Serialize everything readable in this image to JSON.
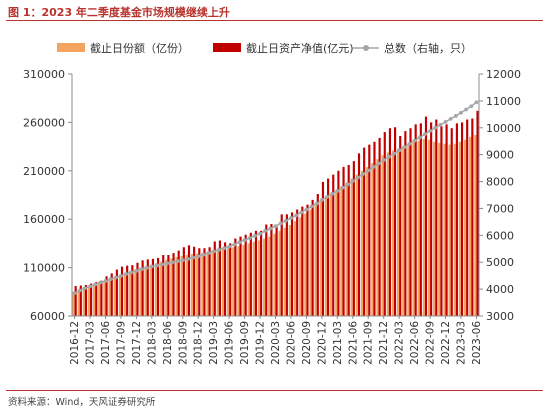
{
  "title": "图 1：2023 年二季度基金市场规模继续上升",
  "source": "资料来源：Wind，天风证券研究所",
  "chart_data": {
    "type": "bar",
    "legend_position": "top",
    "grid": false,
    "categories": [
      "2016-12",
      "2017-01",
      "2017-02",
      "2017-03",
      "2017-04",
      "2017-05",
      "2017-06",
      "2017-07",
      "2017-08",
      "2017-09",
      "2017-10",
      "2017-11",
      "2017-12",
      "2018-01",
      "2018-02",
      "2018-03",
      "2018-04",
      "2018-05",
      "2018-06",
      "2018-07",
      "2018-08",
      "2018-09",
      "2018-10",
      "2018-11",
      "2018-12",
      "2019-01",
      "2019-02",
      "2019-03",
      "2019-04",
      "2019-05",
      "2019-06",
      "2019-07",
      "2019-08",
      "2019-09",
      "2019-10",
      "2019-11",
      "2019-12",
      "2020-01",
      "2020-02",
      "2020-03",
      "2020-04",
      "2020-05",
      "2020-06",
      "2020-07",
      "2020-08",
      "2020-09",
      "2020-10",
      "2020-11",
      "2020-12",
      "2021-01",
      "2021-02",
      "2021-03",
      "2021-04",
      "2021-05",
      "2021-06",
      "2021-07",
      "2021-08",
      "2021-09",
      "2021-10",
      "2021-11",
      "2021-12",
      "2022-01",
      "2022-02",
      "2022-03",
      "2022-04",
      "2022-05",
      "2022-06",
      "2022-07",
      "2022-08",
      "2022-09",
      "2022-10",
      "2022-11",
      "2022-12",
      "2023-01",
      "2023-02",
      "2023-03",
      "2023-04",
      "2023-05",
      "2023-06"
    ],
    "x_tick_labels": [
      "2016-12",
      "2017-03",
      "2017-06",
      "2017-09",
      "2017-12",
      "2018-03",
      "2018-06",
      "2018-09",
      "2018-12",
      "2019-03",
      "2019-06",
      "2019-09",
      "2019-12",
      "2020-03",
      "2020-06",
      "2020-09",
      "2020-12",
      "2021-03",
      "2021-06",
      "2021-09",
      "2021-12",
      "2022-03",
      "2022-06",
      "2022-09",
      "2022-12",
      "2023-03",
      "2023-06"
    ],
    "y_left": {
      "min": 60000,
      "max": 310000,
      "ticks": [
        60000,
        110000,
        160000,
        210000,
        260000,
        310000
      ]
    },
    "y_right": {
      "min": 3000,
      "max": 12000,
      "ticks": [
        3000,
        4000,
        5000,
        6000,
        7000,
        8000,
        9000,
        10000,
        11000,
        12000
      ]
    },
    "series": [
      {
        "name": "截止日份额（亿份）",
        "type": "bar",
        "axis": "left",
        "color": "#f4a460",
        "values": [
          85000,
          86000,
          87500,
          89000,
          91000,
          93000,
          95000,
          97000,
          99500,
          102000,
          104500,
          106000,
          108000,
          110000,
          111500,
          113000,
          114500,
          116000,
          118000,
          119500,
          121000,
          122000,
          123000,
          124000,
          124500,
          125000,
          126000,
          128000,
          129000,
          129500,
          130000,
          131000,
          132000,
          133500,
          135000,
          136500,
          138000,
          140000,
          142000,
          145000,
          148000,
          151000,
          154000,
          158000,
          162000,
          166000,
          170000,
          174000,
          178000,
          182000,
          186000,
          190000,
          194000,
          198000,
          202000,
          206000,
          210000,
          214000,
          218000,
          222000,
          226000,
          229000,
          231000,
          233000,
          235000,
          237000,
          239000,
          241000,
          243000,
          242000,
          240000,
          239000,
          238000,
          237000,
          238000,
          240000,
          242000,
          245000,
          247000
        ]
      },
      {
        "name": "截止日资产净值(亿元)",
        "type": "bar",
        "axis": "left",
        "color": "#c00000",
        "values": [
          91000,
          91500,
          92000,
          93500,
          95000,
          96500,
          101000,
          104000,
          108000,
          111000,
          112000,
          112500,
          115000,
          117500,
          118500,
          119000,
          120000,
          123000,
          123000,
          125000,
          127500,
          131000,
          133000,
          131500,
          130000,
          130000,
          131000,
          137000,
          138000,
          136000,
          135000,
          140000,
          142000,
          144000,
          146000,
          148000,
          148000,
          154500,
          155000,
          153000,
          165000,
          165000,
          167000,
          170000,
          173000,
          175000,
          180000,
          186000,
          198500,
          202000,
          206000,
          210000,
          214000,
          216000,
          220000,
          228000,
          234000,
          237000,
          240000,
          244000,
          250000,
          254000,
          255000,
          246000,
          251000,
          254000,
          258000,
          259000,
          266000,
          260000,
          263000,
          256000,
          258000,
          254000,
          259000,
          260000,
          263000,
          264000,
          272000
        ]
      },
      {
        "name": "总数（右轴，只）",
        "type": "line",
        "axis": "right",
        "color": "#a6a6a6",
        "values": [
          3850,
          3950,
          4030,
          4100,
          4170,
          4240,
          4300,
          4370,
          4430,
          4490,
          4560,
          4620,
          4680,
          4740,
          4790,
          4840,
          4880,
          4920,
          4960,
          5000,
          5040,
          5080,
          5120,
          5170,
          5220,
          5280,
          5340,
          5400,
          5460,
          5520,
          5580,
          5660,
          5740,
          5820,
          5900,
          5980,
          6060,
          6160,
          6250,
          6340,
          6440,
          6540,
          6640,
          6740,
          6850,
          6960,
          7070,
          7180,
          7320,
          7430,
          7540,
          7650,
          7770,
          7890,
          8020,
          8150,
          8280,
          8410,
          8540,
          8670,
          8800,
          8920,
          9040,
          9160,
          9280,
          9400,
          9520,
          9640,
          9760,
          9880,
          10000,
          10110,
          10220,
          10330,
          10440,
          10560,
          10680,
          10800,
          10950
        ]
      }
    ]
  }
}
